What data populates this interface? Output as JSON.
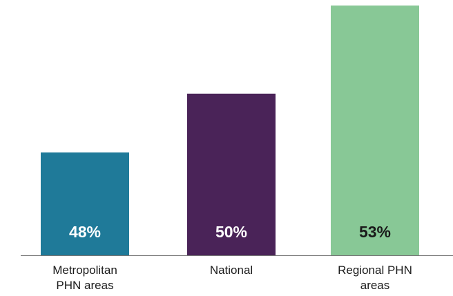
{
  "chart_data": {
    "type": "bar",
    "categories": [
      "Metropolitan PHN areas",
      "National",
      "Regional PHN areas"
    ],
    "values": [
      48,
      50,
      53
    ],
    "value_labels": [
      "48%",
      "50%",
      "53%"
    ],
    "colors": [
      "#1f7a99",
      "#4a2358",
      "#88c896"
    ],
    "ylim": [
      44.5,
      53
    ]
  }
}
